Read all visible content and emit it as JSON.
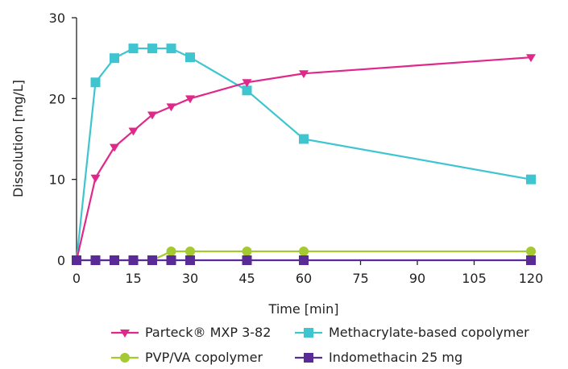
{
  "chart_data": {
    "type": "line",
    "title": "",
    "xlabel": "Time [min]",
    "ylabel": "Dissolution [mg/L]",
    "xlim": [
      0,
      120
    ],
    "ylim": [
      0,
      30
    ],
    "x_ticks": [
      "0",
      "15",
      "30",
      "45",
      "60",
      "75",
      "90",
      "105",
      "120"
    ],
    "y_ticks": [
      "0",
      "10",
      "20",
      "30"
    ],
    "grid": false,
    "legend_position": "bottom",
    "series": [
      {
        "name": "Parteck® MXP 3-82",
        "color": "#e0288a",
        "marker": "triangle-down",
        "x": [
          0,
          5,
          10,
          15,
          20,
          25,
          30,
          45,
          60,
          120
        ],
        "values": [
          0,
          10.2,
          14,
          16,
          18,
          19,
          20,
          22,
          23.1,
          25.1
        ]
      },
      {
        "name": "Methacrylate-based copolymer",
        "color": "#3fc5d0",
        "marker": "square",
        "x": [
          0,
          5,
          10,
          15,
          20,
          25,
          30,
          45,
          60,
          120
        ],
        "values": [
          0,
          22,
          25,
          26.2,
          26.2,
          26.2,
          25.1,
          21,
          15,
          10
        ]
      },
      {
        "name": "PVP/VA copolymer",
        "color": "#a4c932",
        "marker": "circle",
        "x": [
          0,
          5,
          10,
          15,
          20,
          25,
          30,
          45,
          60,
          120
        ],
        "values": [
          0,
          0,
          0,
          0,
          0,
          1.1,
          1.1,
          1.1,
          1.1,
          1.1
        ]
      },
      {
        "name": "Indomethacin 25 mg",
        "color": "#5a2a96",
        "marker": "square",
        "x": [
          0,
          5,
          10,
          15,
          20,
          25,
          30,
          45,
          60,
          120
        ],
        "values": [
          0,
          0,
          0,
          0,
          0,
          0,
          0,
          0,
          0,
          0
        ]
      }
    ]
  }
}
